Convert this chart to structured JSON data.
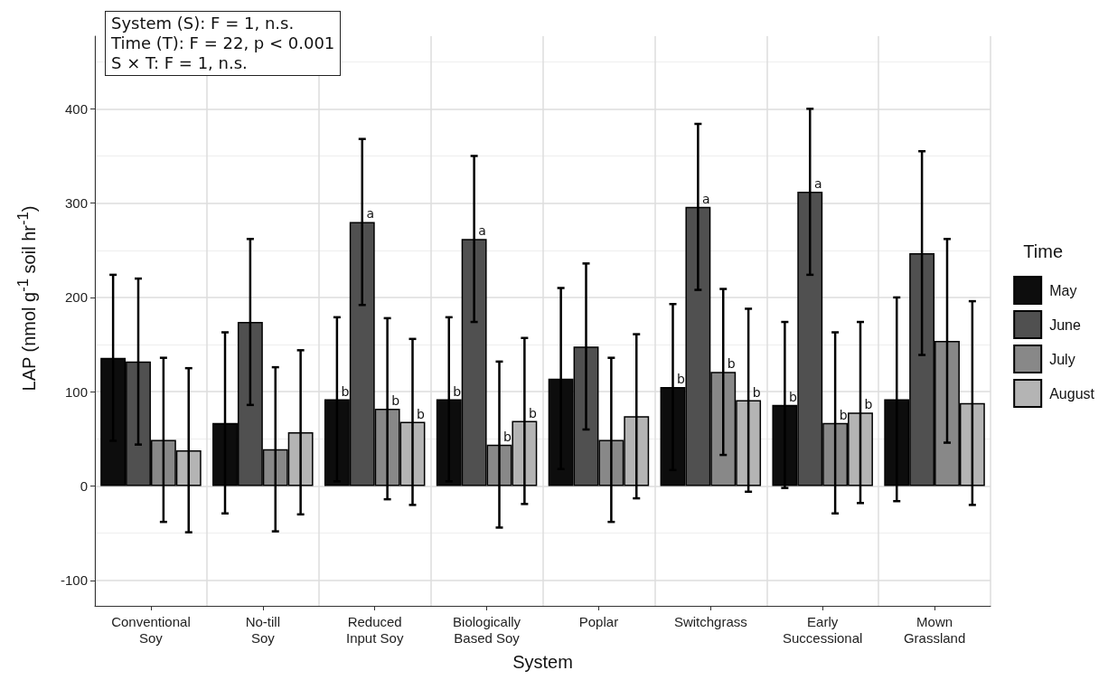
{
  "chart_data": {
    "type": "bar",
    "xlabel": "System",
    "ylabel": "LAP (nmol g$^{-1}$ soil hr$^{-1}$)",
    "legend_title": "Time",
    "categories": [
      "Conventional\nSoy",
      "No-till\nSoy",
      "Reduced\nInput Soy",
      "Biologically\nBased Soy",
      "Poplar",
      "Switchgrass",
      "Early\nSuccessional",
      "Mown\nGrassland"
    ],
    "series": [
      {
        "name": "May",
        "color": "#0d0d0d",
        "values": [
          136,
          67,
          92,
          92,
          114,
          105,
          86,
          92
        ],
        "errors": [
          88,
          96,
          87,
          87,
          96,
          88,
          88,
          108
        ],
        "value_labels": [
          null,
          null,
          "b",
          "b",
          null,
          "b",
          "b",
          null
        ]
      },
      {
        "name": "June",
        "color": "#505050",
        "values": [
          132,
          174,
          280,
          262,
          148,
          296,
          312,
          247
        ],
        "errors": [
          88,
          88,
          88,
          88,
          88,
          88,
          88,
          108
        ],
        "value_labels": [
          null,
          null,
          "a",
          "a",
          null,
          "a",
          "a",
          null
        ]
      },
      {
        "name": "July",
        "color": "#888888",
        "values": [
          49,
          39,
          82,
          44,
          49,
          121,
          67,
          154
        ],
        "errors": [
          87,
          87,
          96,
          88,
          87,
          88,
          96,
          108
        ],
        "value_labels": [
          null,
          null,
          "b",
          "b",
          null,
          "b",
          "b",
          null
        ]
      },
      {
        "name": "August",
        "color": "#b4b4b4",
        "values": [
          38,
          57,
          68,
          69,
          74,
          91,
          78,
          88
        ],
        "errors": [
          87,
          87,
          88,
          88,
          87,
          97,
          96,
          108
        ],
        "value_labels": [
          null,
          null,
          "b",
          "b",
          null,
          "b",
          "b",
          null
        ]
      }
    ],
    "ylim": [
      -127,
      477
    ],
    "yticks": [
      -100,
      0,
      100,
      200,
      300,
      400
    ],
    "grid": true,
    "legend": "right",
    "annotations": [
      "System (S): F = 1, n.s.",
      "Time (T): F = 22, p < 0.001",
      "S × T: F = 1, n.s."
    ]
  }
}
